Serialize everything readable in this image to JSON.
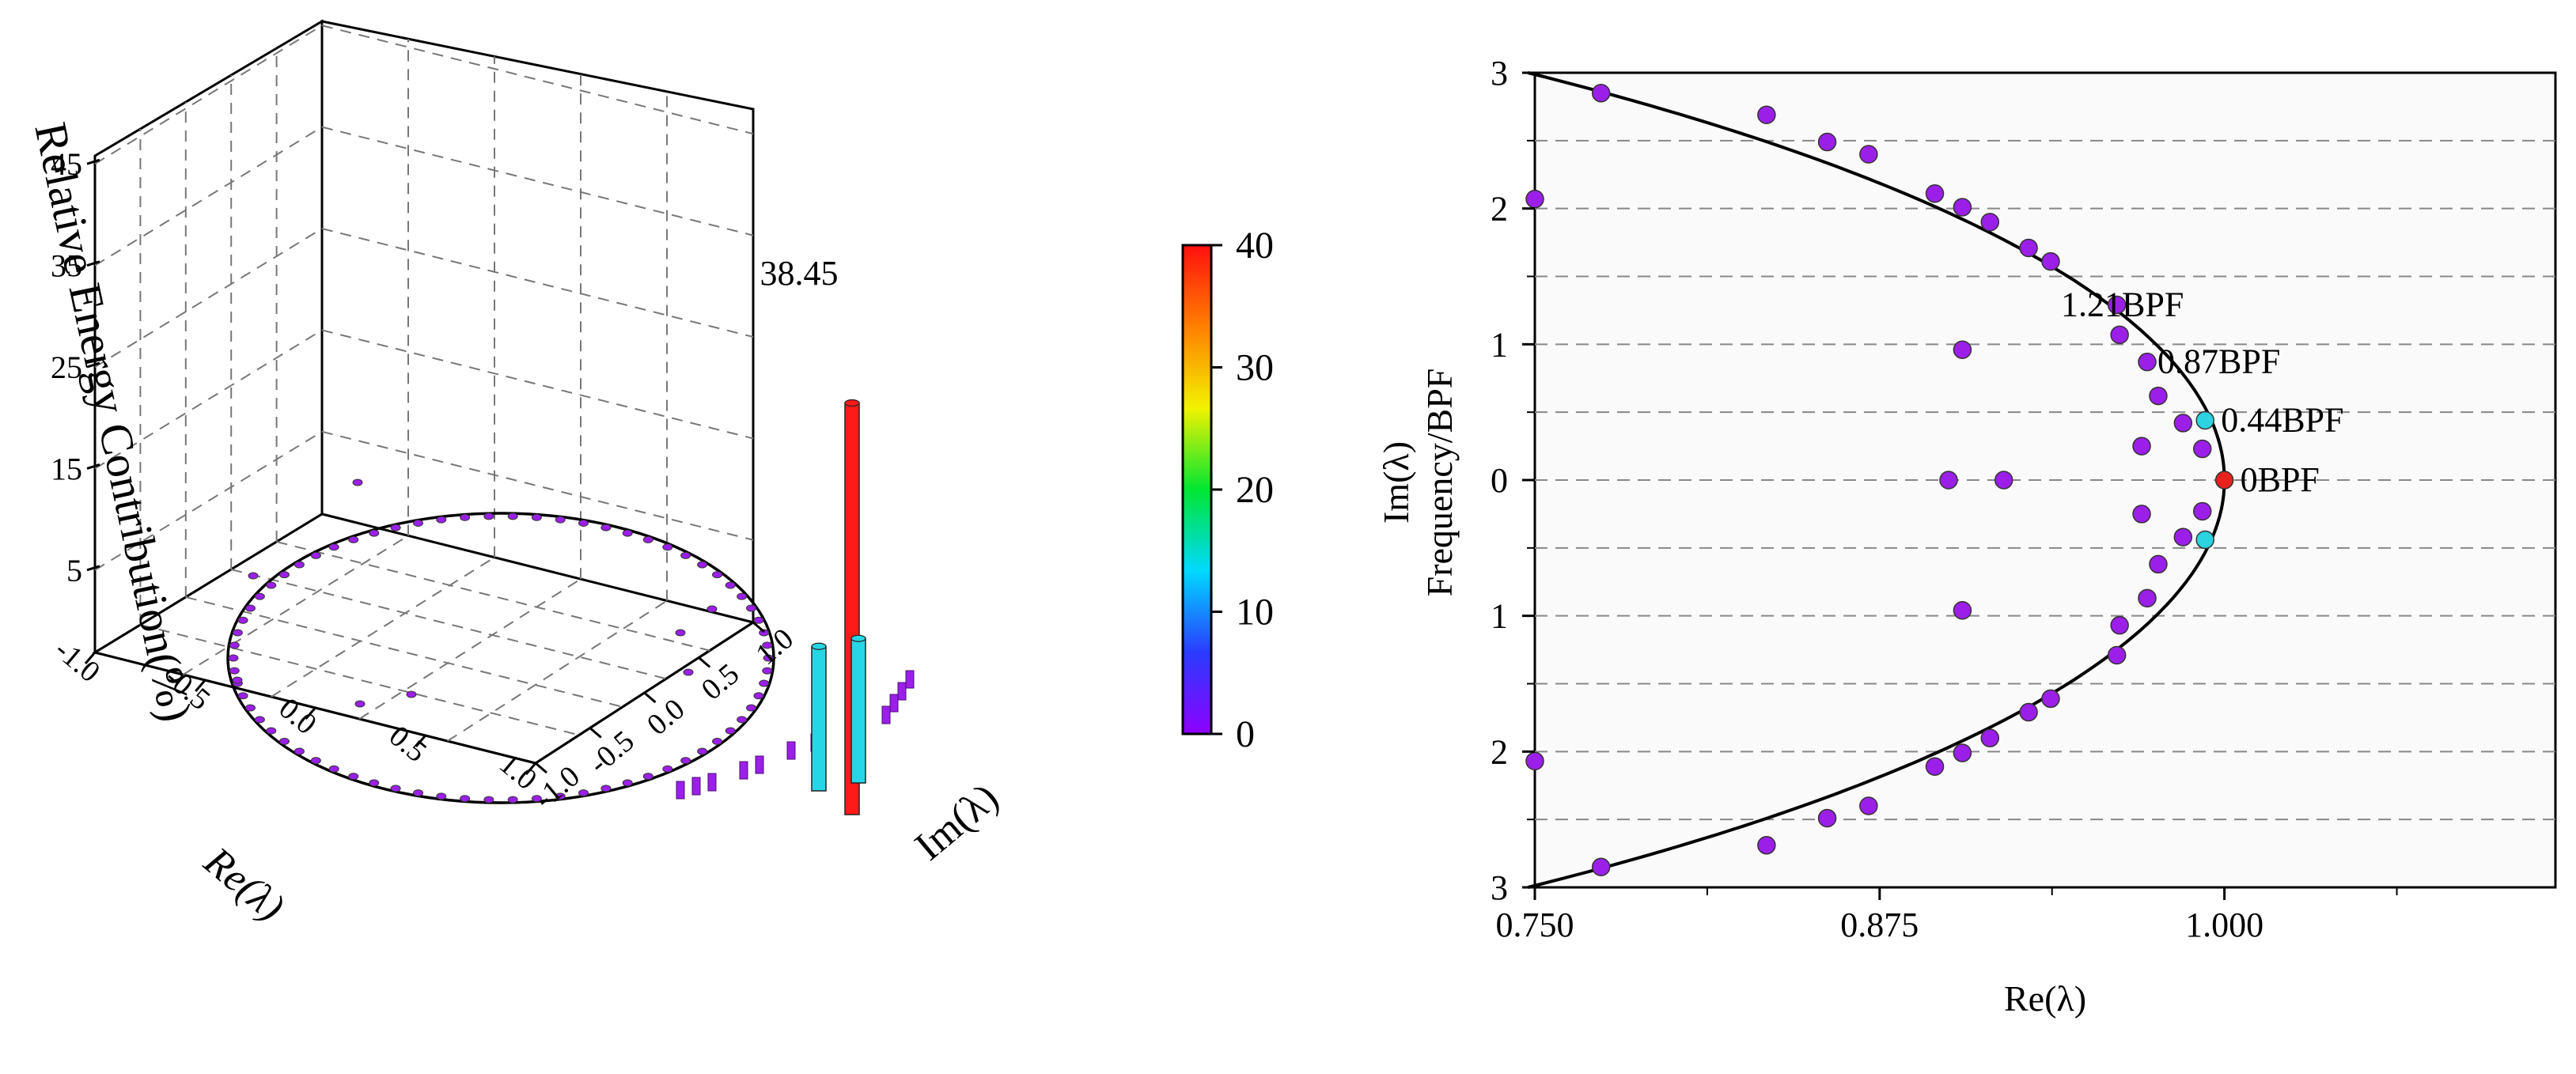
{
  "colors": {
    "bar_main": "#ff1a1a",
    "bar_side": "#26d6e6",
    "point_default": "#9b1fe8",
    "point_zero": "#e8221c",
    "point_cyan": "#2bd4e0",
    "colorbar_stops": [
      "#8f00ff",
      "#2a3bff",
      "#00d9ff",
      "#00e632",
      "#f2f200",
      "#ff7f00",
      "#ff1010"
    ]
  },
  "chart_data": [
    {
      "type": "bar3d",
      "title": "",
      "xlabel": "Re(λ)",
      "ylabel": "Im(λ)",
      "zlabel": "Relative Energy Contribution(%)",
      "x_ticks": [
        "-1.0",
        "-0.5",
        "0.0",
        "0.5",
        "1.0"
      ],
      "y_ticks": [
        "1.0",
        "0.5",
        "0.0",
        "-0.5",
        "-1.0"
      ],
      "z_ticks": [
        "5",
        "15",
        "25",
        "35",
        "45"
      ],
      "zlim": [
        0,
        45
      ],
      "grid": true,
      "unit_circle": true,
      "annotation": "38.45",
      "colorbar": {
        "min": 0,
        "max": 40,
        "ticks": [
          "0",
          "10",
          "20",
          "30",
          "40"
        ]
      },
      "bars": [
        {
          "re": 1.0,
          "im": 0.0,
          "value": 38.45,
          "color_key": "bar_main"
        },
        {
          "re": 0.99,
          "im": 0.14,
          "value": 13.5,
          "color_key": "bar_side"
        },
        {
          "re": 0.99,
          "im": -0.14,
          "value": 13.5,
          "color_key": "bar_side"
        }
      ]
    },
    {
      "type": "scatter",
      "title": "",
      "xlabel": "Re(λ)",
      "ylabel_lines": [
        "Im(λ)",
        "Frequency/BPF"
      ],
      "xlim": [
        0.75,
        1.12
      ],
      "ylim": [
        -3,
        3
      ],
      "x_ticks": [
        "0.750",
        "0.875",
        "1.000"
      ],
      "y_ticks": [
        "3",
        "2",
        "1",
        "0",
        "1",
        "2",
        "3"
      ],
      "grid": "horizontal-dashed",
      "curve": "unit circle: Re = sqrt(1 - Im^2)",
      "annotations": [
        {
          "text": "1.21BPF",
          "re": 0.935,
          "im": 1.29
        },
        {
          "text": "0.87BPF",
          "re": 0.97,
          "im": 0.87
        },
        {
          "text": "0.44BPF",
          "re": 0.993,
          "im": 0.44
        },
        {
          "text": "0BPF",
          "re": 1.0,
          "im": 0.0
        }
      ],
      "points": [
        {
          "re": 0.774,
          "im": 2.85
        },
        {
          "re": 0.834,
          "im": 2.69
        },
        {
          "re": 0.856,
          "im": 2.49
        },
        {
          "re": 0.871,
          "im": 2.4
        },
        {
          "re": 0.895,
          "im": 2.11
        },
        {
          "re": 0.905,
          "im": 2.01
        },
        {
          "re": 0.915,
          "im": 1.9
        },
        {
          "re": 0.929,
          "im": 1.71
        },
        {
          "re": 0.937,
          "im": 1.61
        },
        {
          "re": 0.961,
          "im": 1.29
        },
        {
          "re": 0.962,
          "im": 1.07
        },
        {
          "re": 0.972,
          "im": 0.87
        },
        {
          "re": 0.976,
          "im": 0.62
        },
        {
          "re": 0.985,
          "im": 0.42
        },
        {
          "re": 0.992,
          "im": 0.23
        },
        {
          "re": 0.97,
          "im": 0.25
        },
        {
          "re": 0.905,
          "im": 0.96
        },
        {
          "re": 0.75,
          "im": 2.07
        },
        {
          "re": 0.9,
          "im": 0.0
        },
        {
          "re": 0.92,
          "im": 0.0
        },
        {
          "re": 0.774,
          "im": -2.85
        },
        {
          "re": 0.834,
          "im": -2.69
        },
        {
          "re": 0.856,
          "im": -2.49
        },
        {
          "re": 0.871,
          "im": -2.4
        },
        {
          "re": 0.895,
          "im": -2.11
        },
        {
          "re": 0.905,
          "im": -2.01
        },
        {
          "re": 0.915,
          "im": -1.9
        },
        {
          "re": 0.929,
          "im": -1.71
        },
        {
          "re": 0.937,
          "im": -1.61
        },
        {
          "re": 0.961,
          "im": -1.29
        },
        {
          "re": 0.962,
          "im": -1.07
        },
        {
          "re": 0.972,
          "im": -0.87
        },
        {
          "re": 0.976,
          "im": -0.62
        },
        {
          "re": 0.985,
          "im": -0.42
        },
        {
          "re": 0.992,
          "im": -0.23
        },
        {
          "re": 0.97,
          "im": -0.25
        },
        {
          "re": 0.905,
          "im": -0.96
        },
        {
          "re": 0.75,
          "im": -2.07
        },
        {
          "re": 0.993,
          "im": 0.44,
          "color_key": "point_cyan"
        },
        {
          "re": 0.993,
          "im": -0.44,
          "color_key": "point_cyan"
        },
        {
          "re": 1.0,
          "im": 0.0,
          "color_key": "point_zero"
        }
      ]
    }
  ]
}
